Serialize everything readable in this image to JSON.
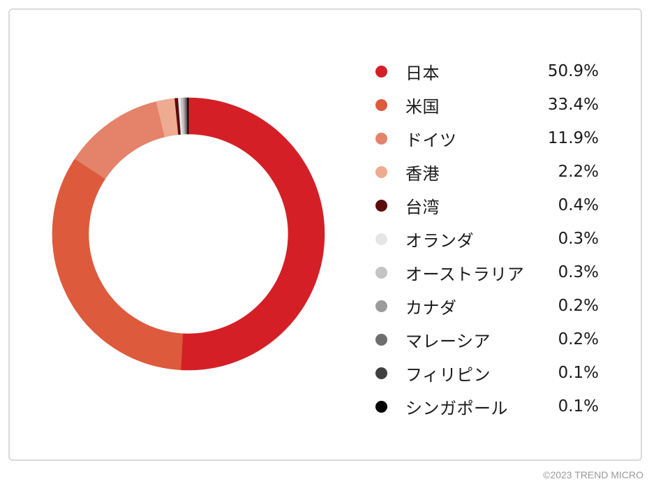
{
  "chart_data": {
    "type": "pie",
    "donut": true,
    "categories": [
      "日本",
      "米国",
      "ドイツ",
      "香港",
      "台湾",
      "オランダ",
      "オーストラリア",
      "カナダ",
      "マレーシア",
      "フィリピン",
      "シンガポール"
    ],
    "values": [
      50.9,
      33.4,
      11.9,
      2.2,
      0.4,
      0.3,
      0.3,
      0.2,
      0.2,
      0.1,
      0.1
    ],
    "value_labels": [
      "50.9%",
      "33.4%",
      "11.9%",
      "2.2%",
      "0.4%",
      "0.3%",
      "0.3%",
      "0.2%",
      "0.2%",
      "0.1%",
      "0.1%"
    ],
    "colors": [
      "#d41f26",
      "#dd5a3c",
      "#e4826a",
      "#efaa92",
      "#5c0a0a",
      "#e6e6e6",
      "#c4c4c4",
      "#9b9b9b",
      "#6e6e6e",
      "#3f3f3f",
      "#000000"
    ],
    "legend_position": "right",
    "start_angle": "top",
    "direction": "clockwise"
  },
  "credit": "©2023 TREND MICRO"
}
